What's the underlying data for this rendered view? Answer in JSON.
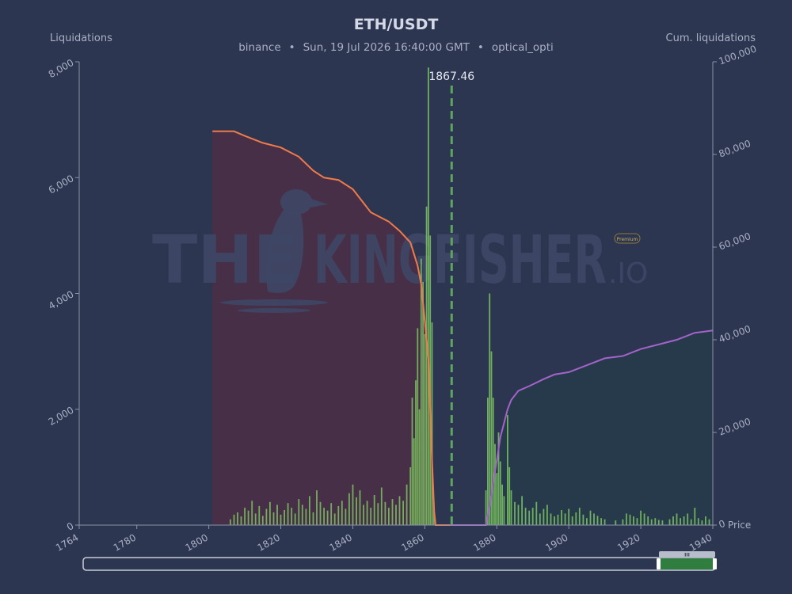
{
  "header": {
    "title": "ETH/USDT",
    "exchange": "binance",
    "separator": "•",
    "datetime": "Sun, 19 Jul 2026 16:40:00 GMT",
    "user": "optical_opti"
  },
  "watermark": {
    "text_left": "THE",
    "text_right": "KINGFISHER",
    "suffix": ".IO",
    "badge": "Premium"
  },
  "colors": {
    "background": "#2d3651",
    "short_cum_line": "#f07a4a",
    "short_cum_fill": "#4a2f47",
    "long_cum_line": "#a463c9",
    "long_cum_fill": "#263b4b",
    "liquidation_bars": "#7dc462",
    "current_price_line": "#5fa55f",
    "axis": "#8a93a8"
  },
  "chart_data": {
    "type": "bar",
    "title": "ETH/USDT",
    "ylabel_left": "Liquidations",
    "ylabel_right": "Cum. liquidations",
    "xlabel": "Price",
    "xlim": [
      1764,
      1940
    ],
    "ylim_left": [
      0,
      8000
    ],
    "ylim_right": [
      0,
      100000
    ],
    "x_ticks": [
      "1764",
      "1780",
      "1800",
      "1820",
      "1840",
      "1860",
      "1880",
      "1900",
      "1920",
      "1940"
    ],
    "x_tick_values": [
      1764,
      1780,
      1800,
      1820,
      1840,
      1860,
      1880,
      1900,
      1920,
      1940
    ],
    "y_left_ticks": [
      "0",
      "2,000",
      "4,000",
      "6,000",
      "8,000"
    ],
    "y_left_tick_values": [
      0,
      2000,
      4000,
      6000,
      8000
    ],
    "y_right_ticks": [
      "0",
      "20,000",
      "40,000",
      "60,000",
      "80,000",
      "100,000"
    ],
    "y_right_tick_values": [
      0,
      20000,
      40000,
      60000,
      80000,
      100000
    ],
    "current_price": 1867.46,
    "current_price_label": "1867.46",
    "series": [
      {
        "kind": "cumulative",
        "side": "short",
        "points": [
          [
            1801,
            85000
          ],
          [
            1807,
            85000
          ],
          [
            1810,
            84000
          ],
          [
            1815,
            82500
          ],
          [
            1820,
            81500
          ],
          [
            1825,
            79500
          ],
          [
            1829,
            76500
          ],
          [
            1832,
            75000
          ],
          [
            1836,
            74500
          ],
          [
            1840,
            72500
          ],
          [
            1843,
            69500
          ],
          [
            1845,
            67500
          ],
          [
            1850,
            65500
          ],
          [
            1853,
            63500
          ],
          [
            1856,
            61000
          ],
          [
            1858,
            56000
          ],
          [
            1859,
            52000
          ],
          [
            1860,
            44000
          ],
          [
            1861,
            36000
          ],
          [
            1861.5,
            25000
          ],
          [
            1862,
            14000
          ],
          [
            1862.6,
            3000
          ],
          [
            1863,
            0
          ],
          [
            1867,
            0
          ]
        ]
      },
      {
        "kind": "cumulative",
        "side": "long",
        "points": [
          [
            1867,
            0
          ],
          [
            1877,
            0
          ],
          [
            1878,
            4000
          ],
          [
            1879,
            9000
          ],
          [
            1880,
            14000
          ],
          [
            1881,
            19000
          ],
          [
            1882,
            22000
          ],
          [
            1883,
            25000
          ],
          [
            1884,
            27000
          ],
          [
            1886,
            29000
          ],
          [
            1889,
            30000
          ],
          [
            1893,
            31500
          ],
          [
            1896,
            32500
          ],
          [
            1900,
            33000
          ],
          [
            1905,
            34500
          ],
          [
            1910,
            36000
          ],
          [
            1915,
            36500
          ],
          [
            1920,
            38000
          ],
          [
            1925,
            39000
          ],
          [
            1930,
            40000
          ],
          [
            1935,
            41500
          ],
          [
            1940,
            42000
          ]
        ]
      },
      {
        "kind": "bars",
        "side": "short",
        "bars": [
          [
            1806,
            100
          ],
          [
            1807,
            180
          ],
          [
            1808,
            220
          ],
          [
            1809,
            150
          ],
          [
            1810,
            300
          ],
          [
            1811,
            250
          ],
          [
            1812,
            420
          ],
          [
            1813,
            200
          ],
          [
            1814,
            330
          ],
          [
            1815,
            160
          ],
          [
            1816,
            280
          ],
          [
            1817,
            400
          ],
          [
            1818,
            220
          ],
          [
            1819,
            350
          ],
          [
            1820,
            180
          ],
          [
            1821,
            260
          ],
          [
            1822,
            380
          ],
          [
            1823,
            300
          ],
          [
            1824,
            200
          ],
          [
            1825,
            450
          ],
          [
            1826,
            350
          ],
          [
            1827,
            280
          ],
          [
            1828,
            500
          ],
          [
            1829,
            220
          ],
          [
            1830,
            600
          ],
          [
            1831,
            400
          ],
          [
            1832,
            300
          ],
          [
            1833,
            250
          ],
          [
            1834,
            380
          ],
          [
            1835,
            200
          ],
          [
            1836,
            330
          ],
          [
            1837,
            420
          ],
          [
            1838,
            280
          ],
          [
            1839,
            550
          ],
          [
            1840,
            700
          ],
          [
            1841,
            480
          ],
          [
            1842,
            600
          ],
          [
            1843,
            350
          ],
          [
            1844,
            420
          ],
          [
            1845,
            300
          ],
          [
            1846,
            520
          ],
          [
            1847,
            380
          ],
          [
            1848,
            650
          ],
          [
            1849,
            400
          ],
          [
            1850,
            300
          ],
          [
            1851,
            450
          ],
          [
            1852,
            350
          ],
          [
            1853,
            500
          ],
          [
            1854,
            420
          ],
          [
            1855,
            700
          ],
          [
            1856,
            1000
          ],
          [
            1856.5,
            2200
          ],
          [
            1857,
            1500
          ],
          [
            1857.5,
            2500
          ],
          [
            1858,
            3400
          ],
          [
            1858.5,
            2000
          ],
          [
            1859,
            4600
          ],
          [
            1859.5,
            4200
          ],
          [
            1860,
            3300
          ],
          [
            1860.5,
            5500
          ],
          [
            1861,
            7900
          ],
          [
            1861.5,
            5000
          ],
          [
            1862,
            3500
          ],
          [
            1862.5,
            400
          ]
        ]
      },
      {
        "kind": "bars",
        "side": "long",
        "bars": [
          [
            1877,
            600
          ],
          [
            1877.5,
            2200
          ],
          [
            1878,
            4000
          ],
          [
            1878.5,
            3000
          ],
          [
            1879,
            2200
          ],
          [
            1879.5,
            1400
          ],
          [
            1880,
            900
          ],
          [
            1880.5,
            1600
          ],
          [
            1881,
            1100
          ],
          [
            1881.5,
            700
          ],
          [
            1882,
            500
          ],
          [
            1883,
            1900
          ],
          [
            1883.5,
            1000
          ],
          [
            1884,
            600
          ],
          [
            1885,
            400
          ],
          [
            1886,
            350
          ],
          [
            1887,
            500
          ],
          [
            1888,
            300
          ],
          [
            1889,
            250
          ],
          [
            1890,
            300
          ],
          [
            1891,
            400
          ],
          [
            1892,
            200
          ],
          [
            1893,
            280
          ],
          [
            1894,
            350
          ],
          [
            1895,
            200
          ],
          [
            1896,
            150
          ],
          [
            1897,
            180
          ],
          [
            1898,
            260
          ],
          [
            1899,
            200
          ],
          [
            1900,
            280
          ],
          [
            1901,
            150
          ],
          [
            1902,
            220
          ],
          [
            1903,
            300
          ],
          [
            1904,
            180
          ],
          [
            1905,
            120
          ],
          [
            1906,
            250
          ],
          [
            1907,
            200
          ],
          [
            1908,
            160
          ],
          [
            1909,
            120
          ],
          [
            1910,
            100
          ],
          [
            1913,
            80
          ],
          [
            1915,
            100
          ],
          [
            1916,
            200
          ],
          [
            1917,
            180
          ],
          [
            1918,
            150
          ],
          [
            1919,
            120
          ],
          [
            1920,
            250
          ],
          [
            1921,
            200
          ],
          [
            1922,
            150
          ],
          [
            1923,
            100
          ],
          [
            1924,
            120
          ],
          [
            1925,
            90
          ],
          [
            1926,
            80
          ],
          [
            1928,
            100
          ],
          [
            1929,
            150
          ],
          [
            1930,
            200
          ],
          [
            1931,
            120
          ],
          [
            1932,
            150
          ],
          [
            1933,
            200
          ],
          [
            1934,
            100
          ],
          [
            1935,
            300
          ],
          [
            1936,
            120
          ],
          [
            1937,
            80
          ],
          [
            1938,
            150
          ],
          [
            1939,
            100
          ]
        ]
      }
    ]
  },
  "navigator": {
    "handle_label": "III"
  }
}
